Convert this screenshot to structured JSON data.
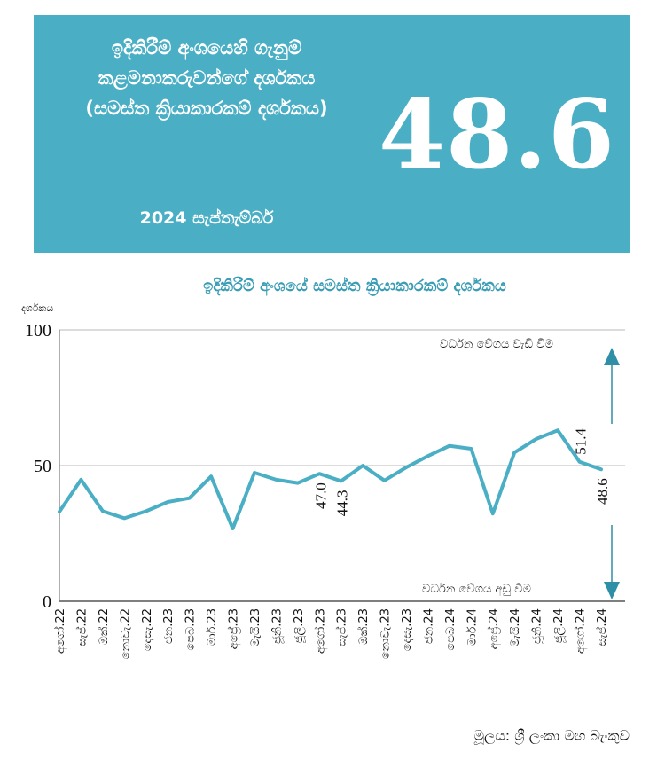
{
  "header": {
    "title": "ඉදිකිරීම් අංශයෙහි ගැනුම් කළමනාකරුවන්ගේ දර්ශකය (සමස්ත ක්‍රියාකාරකම් දර්ශකය)",
    "date": "2024 සැප්තැම්බර්",
    "value": "48.6"
  },
  "colors": {
    "accent": "#4aaec4",
    "line": "#4aaec4",
    "arrow": "#2f8fa6",
    "grid": "#c8c8c8"
  },
  "chart_data": {
    "type": "line",
    "title": "ඉදිකිරීම් අංශයේ සමස්ත ක්‍රියාකාරකම් දර්ශකය",
    "ylabel": "දර්ශකය",
    "xlabel": "",
    "ylim": [
      0,
      100
    ],
    "yticks": [
      "0",
      "50",
      "100"
    ],
    "categories": [
      "අගෝ.22",
      "සැප්.22",
      "ඔක්.22",
      "නොවැ.22",
      "දෙසැ.22",
      "ජන.23",
      "පෙබ.23",
      "මාර්.23",
      "අප්‍රේ.23",
      "මැයි.23",
      "ජූනි.23",
      "ජූලි.23",
      "අගෝ.23",
      "සැප්.23",
      "ඔක්.23",
      "නොවැ.23",
      "දෙසැ.23",
      "ජන.24",
      "පෙබ.24",
      "මාර්.24",
      "අප්‍රේ.24",
      "මැයි.24",
      "ජූනි.24",
      "ජූලි.24",
      "අගෝ.24",
      "සැප්.24"
    ],
    "series": [
      {
        "name": "සමස්ත ක්‍රියාකාරකම් දර්ශකය",
        "values": [
          33.0,
          44.8,
          33.2,
          30.6,
          33.2,
          36.6,
          38.0,
          46.0,
          26.8,
          47.4,
          44.8,
          43.6,
          47.0,
          44.3,
          50.0,
          44.5,
          49.3,
          53.5,
          57.3,
          56.2,
          32.3,
          54.8,
          59.8,
          63.0,
          51.4,
          48.6
        ]
      }
    ],
    "data_labels": [
      {
        "index": 12,
        "text": "47.0"
      },
      {
        "index": 13,
        "text": "44.3"
      },
      {
        "index": 24,
        "text": "51.4"
      },
      {
        "index": 25,
        "text": "48.6"
      }
    ],
    "annotations": {
      "up": "වර්ධන වේගය වැඩි වීම",
      "down": "වර්ධන වේගය අඩු වීම"
    }
  },
  "source": "මූලය: ශ්‍රී ලංකා මහ බැංකුව"
}
